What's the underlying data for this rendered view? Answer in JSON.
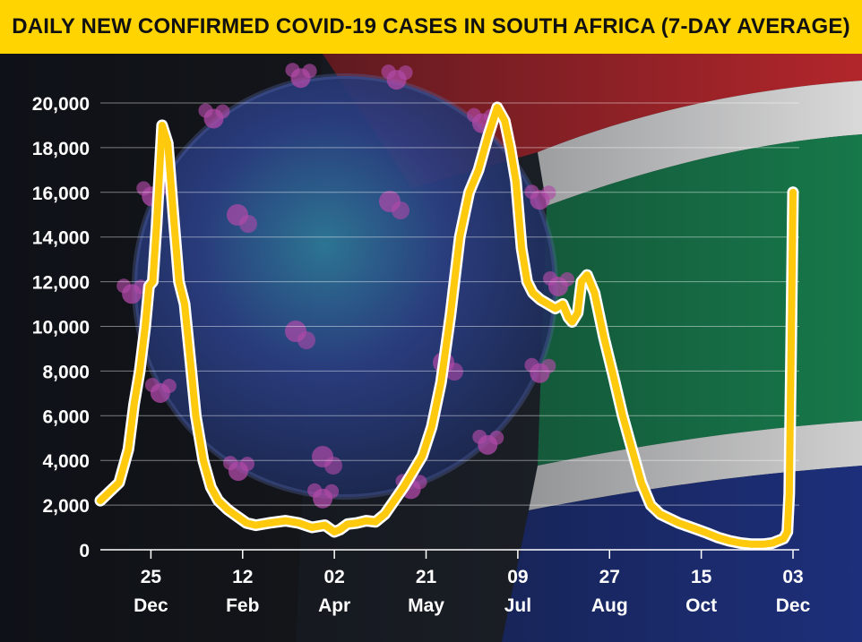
{
  "colors": {
    "title_bg": "#FFD400",
    "line": "#FFC90E",
    "line_outline": "#ffffff",
    "flag_red": "#b2262b",
    "flag_green": "#17784a",
    "flag_blue": "#1d2f7a",
    "flag_black": "#1a1a1a",
    "virus_blue": "#3a4d9c",
    "virus_purple": "#b04aa8"
  },
  "background": {
    "description_icons": [
      "south-africa-flag-background",
      "coronavirus-particle-illustration"
    ]
  },
  "chart_data": {
    "type": "line",
    "title": "DAILY NEW CONFIRMED COVID-19 CASES IN SOUTH AFRICA (7-DAY AVERAGE)",
    "subtitle": "",
    "xlabel": "",
    "ylabel": "",
    "ylim": [
      0,
      20000
    ],
    "yticks": [
      0,
      2000,
      4000,
      6000,
      8000,
      10000,
      12000,
      14000,
      16000,
      18000,
      20000
    ],
    "ytick_labels": [
      "0",
      "2,000",
      "4,000",
      "6,000",
      "8,000",
      "10,000",
      "12,000",
      "14,000",
      "16,000",
      "18,000",
      "20,000"
    ],
    "xlim": [
      "2020-11-28",
      "2021-12-03"
    ],
    "xticks": [
      {
        "date": "2020-12-25",
        "day": "25",
        "month": "Dec"
      },
      {
        "date": "2021-02-12",
        "day": "12",
        "month": "Feb"
      },
      {
        "date": "2021-04-02",
        "day": "02",
        "month": "Apr"
      },
      {
        "date": "2021-05-21",
        "day": "21",
        "month": "May"
      },
      {
        "date": "2021-07-09",
        "day": "09",
        "month": "Jul"
      },
      {
        "date": "2021-08-27",
        "day": "27",
        "month": "Aug"
      },
      {
        "date": "2021-10-15",
        "day": "15",
        "month": "Oct"
      },
      {
        "date": "2021-12-03",
        "day": "03",
        "month": "Dec"
      }
    ],
    "grid": true,
    "legend": "none",
    "series": [
      {
        "x": [
          "2020-11-28",
          "2020-12-03",
          "2020-12-08",
          "2020-12-13",
          "2020-12-16",
          "2020-12-19",
          "2020-12-22",
          "2020-12-24",
          "2020-12-26",
          "2020-12-28",
          "2020-12-31",
          "2021-01-03",
          "2021-01-06",
          "2021-01-09",
          "2021-01-12",
          "2021-01-15",
          "2021-01-18",
          "2021-01-22",
          "2021-01-26",
          "2021-01-30",
          "2021-02-04",
          "2021-02-09",
          "2021-02-14",
          "2021-02-19",
          "2021-02-26",
          "2021-03-07",
          "2021-03-14",
          "2021-03-21",
          "2021-03-28",
          "2021-04-02",
          "2021-04-05",
          "2021-04-09",
          "2021-04-14",
          "2021-04-19",
          "2021-04-24",
          "2021-04-29",
          "2021-05-04",
          "2021-05-09",
          "2021-05-14",
          "2021-05-19",
          "2021-05-24",
          "2021-05-29",
          "2021-06-03",
          "2021-06-08",
          "2021-06-13",
          "2021-06-18",
          "2021-06-23",
          "2021-06-28",
          "2021-07-02",
          "2021-07-05",
          "2021-07-08",
          "2021-07-11",
          "2021-07-14",
          "2021-07-17",
          "2021-07-21",
          "2021-07-25",
          "2021-07-29",
          "2021-08-02",
          "2021-08-05",
          "2021-08-07",
          "2021-08-10",
          "2021-08-12",
          "2021-08-15",
          "2021-08-19",
          "2021-08-24",
          "2021-08-29",
          "2021-09-03",
          "2021-09-08",
          "2021-09-13",
          "2021-09-18",
          "2021-09-23",
          "2021-09-28",
          "2021-10-03",
          "2021-10-08",
          "2021-10-13",
          "2021-10-18",
          "2021-10-24",
          "2021-10-30",
          "2021-11-05",
          "2021-11-11",
          "2021-11-17",
          "2021-11-22",
          "2021-11-25",
          "2021-11-28",
          "2021-11-30",
          "2021-12-01",
          "2021-12-02",
          "2021-12-03"
        ],
        "values": [
          2200,
          2600,
          3000,
          4500,
          6500,
          8000,
          10000,
          11800,
          12000,
          14500,
          19000,
          18200,
          15000,
          12000,
          11000,
          8500,
          6000,
          4000,
          2800,
          2200,
          1800,
          1500,
          1200,
          1100,
          1200,
          1300,
          1200,
          1000,
          1100,
          800,
          900,
          1150,
          1200,
          1300,
          1250,
          1600,
          2200,
          2800,
          3500,
          4200,
          5500,
          7500,
          10500,
          14000,
          16000,
          17000,
          18500,
          19800,
          19200,
          18000,
          16500,
          13500,
          12000,
          11500,
          11200,
          11000,
          10800,
          11000,
          10400,
          10200,
          10600,
          12000,
          12300,
          11500,
          9500,
          7800,
          6000,
          4500,
          3000,
          2000,
          1600,
          1400,
          1200,
          1050,
          900,
          750,
          550,
          400,
          300,
          250,
          250,
          300,
          400,
          500,
          800,
          2500,
          9000,
          16000
        ]
      }
    ]
  }
}
